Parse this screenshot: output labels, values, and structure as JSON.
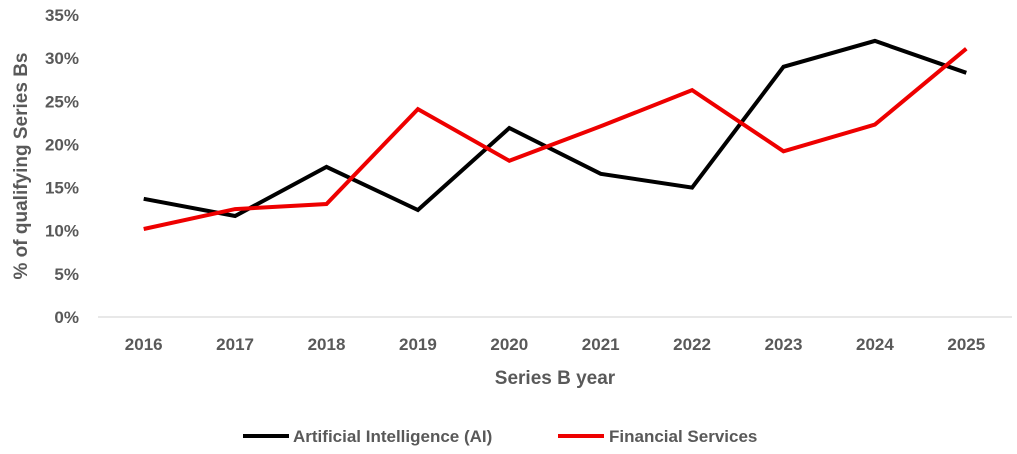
{
  "chart_data": {
    "type": "line",
    "title": "",
    "xlabel": "Series B year",
    "ylabel": "% of qualifying Series Bs",
    "categories": [
      "2016",
      "2017",
      "2018",
      "2019",
      "2020",
      "2021",
      "2022",
      "2023",
      "2024",
      "2025"
    ],
    "ylim": [
      0,
      35
    ],
    "ytick_values": [
      0,
      5,
      10,
      15,
      20,
      25,
      30,
      35
    ],
    "ytick_labels": [
      "0%",
      "5%",
      "10%",
      "15%",
      "20%",
      "25%",
      "30%",
      "35%"
    ],
    "grid": false,
    "legend_position": "bottom",
    "series": [
      {
        "name": "Artificial Intelligence (AI)",
        "color": "#000000",
        "values": [
          13.7,
          11.7,
          17.4,
          12.4,
          21.9,
          16.6,
          15.0,
          29.0,
          32.0,
          28.3
        ]
      },
      {
        "name": "Financial Services",
        "color": "#ee0000",
        "values": [
          10.2,
          12.5,
          13.1,
          24.1,
          18.1,
          22.1,
          26.3,
          19.2,
          22.3,
          31.1
        ]
      }
    ]
  }
}
